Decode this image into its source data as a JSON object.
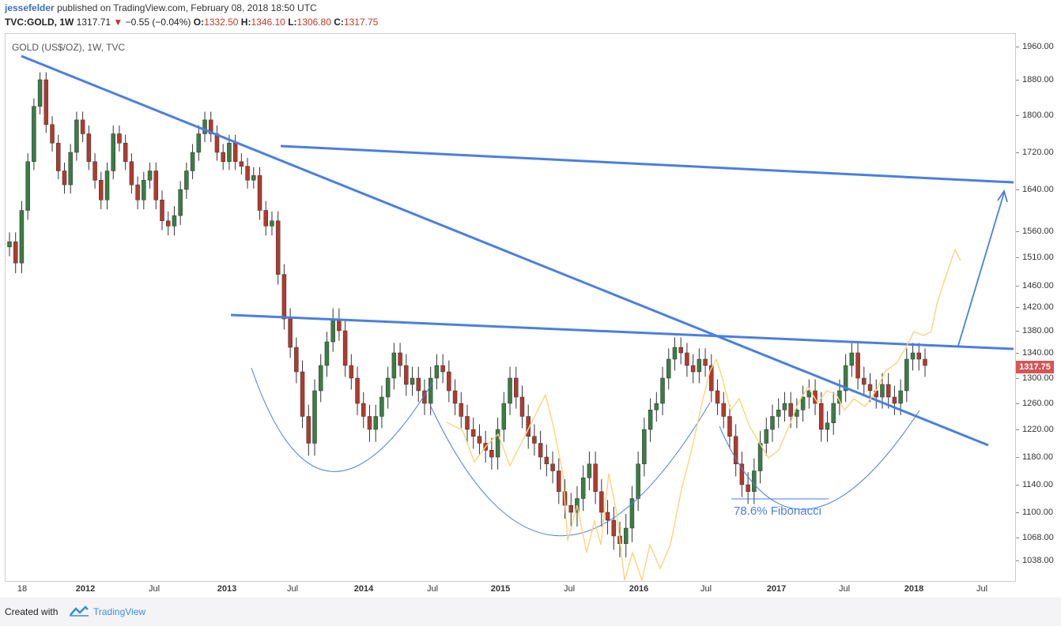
{
  "header": {
    "author": "jessefelder",
    "published": "published on TradingView.com, February 08, 2018 18:50 UTC"
  },
  "ticker": {
    "symbol": "TVC:GOLD, 1W",
    "last": "1317.71",
    "change": "−0.55 (−0.04%)",
    "o_label": "O:",
    "o": "1332.50",
    "h_label": "H:",
    "h": "1346.10",
    "l_label": "L:",
    "l": "1306.80",
    "c_label": "C:",
    "c": "1317.75"
  },
  "colors": {
    "trendline": "#4a7fe0",
    "arc": "#4a7fe0",
    "projection": "#fcd47a",
    "candle_up": "#3a7d44",
    "candle_down": "#b03a2e",
    "price_badge": "#d65555"
  },
  "chart_data": {
    "type": "candlestick",
    "title": "GOLD (US$/OZ), 1W, TVC",
    "y_ticks": [
      "1960.00",
      "1880.00",
      "1800.00",
      "1720.00",
      "1640.00",
      "1560.00",
      "1510.00",
      "1460.00",
      "1420.00",
      "1380.00",
      "1340.00",
      "1300.00",
      "1260.00",
      "1220.00",
      "1180.00",
      "1140.00",
      "1100.00",
      "1068.00",
      "1038.00"
    ],
    "x_ticks": [
      {
        "label": "18",
        "bold": false
      },
      {
        "label": "2012",
        "bold": true
      },
      {
        "label": "Jul",
        "bold": false
      },
      {
        "label": "2013",
        "bold": true
      },
      {
        "label": "Jul",
        "bold": false
      },
      {
        "label": "2014",
        "bold": true
      },
      {
        "label": "Jul",
        "bold": false
      },
      {
        "label": "2015",
        "bold": true
      },
      {
        "label": "Jul",
        "bold": false
      },
      {
        "label": "2016",
        "bold": true
      },
      {
        "label": "Jul",
        "bold": false
      },
      {
        "label": "2017",
        "bold": true
      },
      {
        "label": "Jul",
        "bold": false
      },
      {
        "label": "2018",
        "bold": true
      },
      {
        "label": "Jul",
        "bold": false
      }
    ],
    "last_price": "1317.75",
    "weekly_closes_approx": [
      1540,
      1500,
      1600,
      1700,
      1820,
      1880,
      1780,
      1740,
      1680,
      1650,
      1720,
      1790,
      1760,
      1700,
      1660,
      1620,
      1680,
      1760,
      1740,
      1700,
      1650,
      1620,
      1660,
      1680,
      1620,
      1580,
      1570,
      1590,
      1640,
      1680,
      1720,
      1760,
      1790,
      1760,
      1720,
      1700,
      1740,
      1700,
      1690,
      1660,
      1670,
      1600,
      1570,
      1580,
      1480,
      1400,
      1350,
      1310,
      1240,
      1200,
      1280,
      1320,
      1360,
      1400,
      1380,
      1320,
      1300,
      1260,
      1240,
      1220,
      1240,
      1270,
      1300,
      1340,
      1320,
      1290,
      1300,
      1280,
      1260,
      1300,
      1320,
      1310,
      1280,
      1260,
      1240,
      1220,
      1210,
      1200,
      1190,
      1180,
      1220,
      1260,
      1300,
      1270,
      1240,
      1210,
      1200,
      1180,
      1170,
      1160,
      1130,
      1110,
      1100,
      1120,
      1150,
      1170,
      1130,
      1100,
      1090,
      1070,
      1060,
      1080,
      1120,
      1170,
      1220,
      1250,
      1260,
      1300,
      1330,
      1350,
      1340,
      1320,
      1310,
      1330,
      1320,
      1280,
      1260,
      1240,
      1210,
      1170,
      1140,
      1130,
      1160,
      1200,
      1220,
      1240,
      1250,
      1260,
      1240,
      1250,
      1270,
      1280,
      1260,
      1220,
      1230,
      1260,
      1280,
      1320,
      1340,
      1300,
      1290,
      1280,
      1270,
      1290,
      1270,
      1260,
      1280,
      1330,
      1340,
      1330,
      1320
    ],
    "annotations": {
      "fib_label": "78.6% Fibonacci"
    }
  },
  "footer": {
    "created": "Created with",
    "brand": "TradingView"
  }
}
